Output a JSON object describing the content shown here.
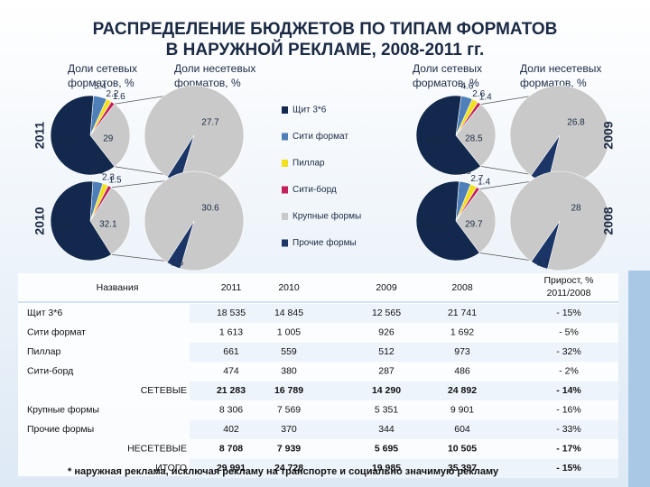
{
  "title": [
    "РАСПРЕДЕЛЕНИЕ БЮДЖЕТОВ ПО ТИПАМ ФОРМАТОВ",
    "В НАРУЖНОЙ РЕКЛАМЕ, 2008-2011 гг."
  ],
  "headings": {
    "network": [
      "Доли сетевых",
      "форматов, %"
    ],
    "nonnetwork": [
      "Доли несетевых",
      "форматов, %"
    ]
  },
  "legend": {
    "names": [
      "Щит 3*6",
      "Сити формат",
      "Пиллар",
      "Сити-борд",
      "Крупные формы",
      "Прочие формы"
    ],
    "colors": [
      "#12294d",
      "#4f7fb8",
      "#f0e020",
      "#c21f5b",
      "#c9c9c9",
      "#1b3566"
    ]
  },
  "chart_data": [
    {
      "type": "pie",
      "label": "2011",
      "values": [
        61.8,
        5.4,
        2.2,
        1.6
      ],
      "other": 29.0,
      "secondary": [
        27.7,
        1.3
      ]
    },
    {
      "type": "pie",
      "label": "2009",
      "values": [
        62.9,
        4.6,
        2.6,
        1.4
      ],
      "other": 28.5,
      "secondary": [
        26.8,
        1.7
      ]
    },
    {
      "type": "pie",
      "label": "2010",
      "values": [
        60.0,
        4.1,
        2.3,
        1.5
      ],
      "other": 32.1,
      "secondary": [
        30.6,
        1.5
      ]
    },
    {
      "type": "pie",
      "label": "2008",
      "values": [
        61.4,
        4.8,
        2.7,
        1.4
      ],
      "other": 29.7,
      "secondary": [
        28.0,
        1.7
      ]
    }
  ],
  "table": {
    "header": [
      "Названия",
      "2011",
      "2010",
      "2009",
      "2008",
      [
        "Прирост, %",
        "2011/2008"
      ]
    ],
    "rows": [
      [
        "Щит 3*6",
        "18 535",
        "14 845",
        "12 565",
        "21 741",
        "- 15%"
      ],
      [
        "Сити формат",
        "1 613",
        "1 005",
        "926",
        "1 692",
        "- 5%"
      ],
      [
        "Пиллар",
        "661",
        "559",
        "512",
        "973",
        "- 32%"
      ],
      [
        "Сити-борд",
        "474",
        "380",
        "287",
        "486",
        "- 2%"
      ],
      [
        "СЕТЕВЫЕ",
        "21 283",
        "16 789",
        "14 290",
        "24 892",
        "- 14%"
      ],
      [
        "Крупные формы",
        "8 306",
        "7 569",
        "5 351",
        "9 901",
        "- 16%"
      ],
      [
        "Прочие формы",
        "402",
        "370",
        "344",
        "604",
        "- 33%"
      ],
      [
        "НЕСЕТЕВЫЕ",
        "8 708",
        "7 939",
        "5 695",
        "10 505",
        "- 17%"
      ],
      [
        "ИТОГО",
        "29 991",
        "24 728",
        "19 985",
        "35 397",
        "- 15%"
      ]
    ]
  },
  "footnote": "* наружная реклама, исключая рекламу на транспорте и социально значимую рекламу"
}
